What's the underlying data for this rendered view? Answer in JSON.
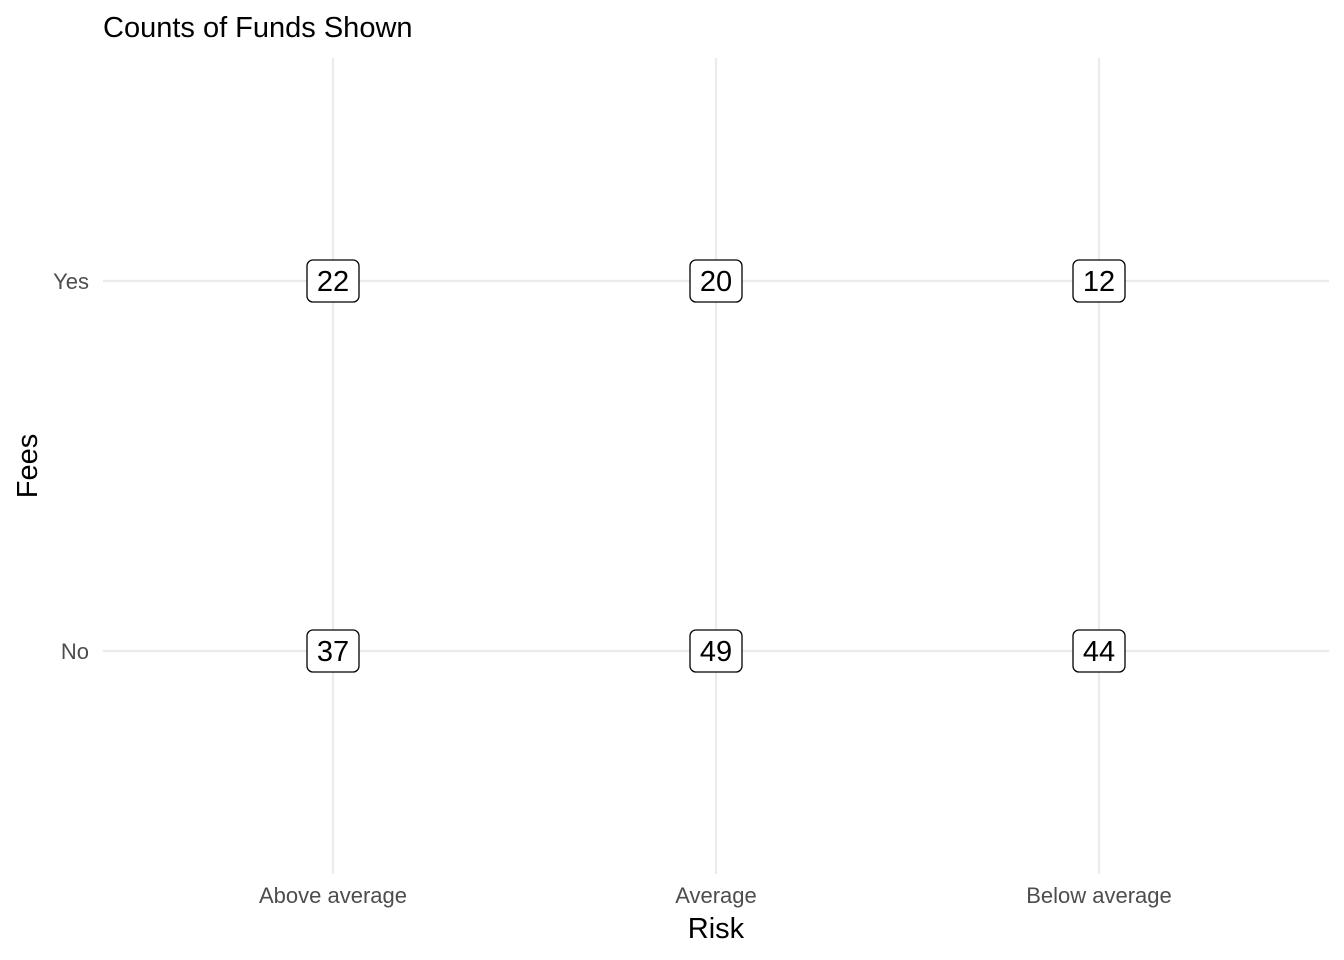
{
  "chart_data": {
    "type": "table",
    "title": "Counts of Funds Shown",
    "xlabel": "Risk",
    "ylabel": "Fees",
    "x_categories": [
      "Above average",
      "Average",
      "Below average"
    ],
    "y_categories": [
      "No",
      "Yes"
    ],
    "cells": [
      {
        "x": "Above average",
        "y": "Yes",
        "value": 22
      },
      {
        "x": "Average",
        "y": "Yes",
        "value": 20
      },
      {
        "x": "Below average",
        "y": "Yes",
        "value": 12
      },
      {
        "x": "Above average",
        "y": "No",
        "value": 37
      },
      {
        "x": "Average",
        "y": "No",
        "value": 49
      },
      {
        "x": "Below average",
        "y": "No",
        "value": 44
      }
    ],
    "grid": true,
    "legend": "none"
  }
}
